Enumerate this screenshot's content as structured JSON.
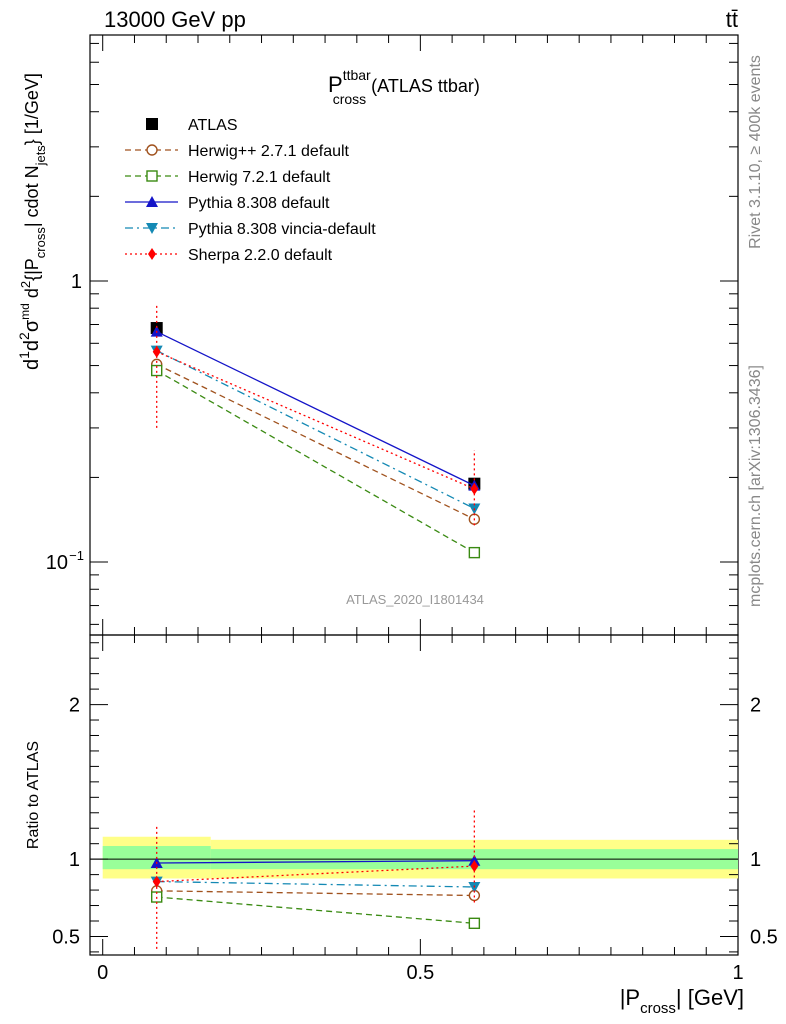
{
  "header": {
    "left": "13000 GeV pp",
    "right": "tt̄"
  },
  "side_labels": {
    "rivet": "Rivet 3.1.10, ≥ 400k events",
    "mcplots": "mcplots.cern.ch [arXiv:1306.3436]"
  },
  "watermark": "ATLAS_2020_I1801434",
  "chart_data": [
    {
      "type": "scatter",
      "panel": "main",
      "title": {
        "main": "P",
        "sup": "ttbar",
        "sub": "cross",
        "suffix": " (ATLAS ttbar)"
      },
      "ylabel": "d¹/σ d²σᵐᵈ / d²{|P_cross| cdot N_jets} [1/GeV]",
      "yscale": "log",
      "xlim": [
        -0.02,
        1.0
      ],
      "ylim": [
        0.055,
        7.5
      ],
      "y_tick_labels": {
        "major_1": "1",
        "major_01": "10",
        "major_01_exp": "−1"
      },
      "legend_position": "top-left",
      "x": [
        0.085,
        0.585
      ],
      "series": [
        {
          "name": "ATLAS",
          "color": "#000000",
          "marker": "square-filled",
          "line": "none",
          "values": [
            0.68,
            0.19
          ],
          "err_low": [
            0.0,
            0.0
          ],
          "err_high": [
            0.0,
            0.0
          ]
        },
        {
          "name": "Herwig++ 2.7.1 default",
          "color": "#a0521e",
          "marker": "circle-open",
          "line": "dashed",
          "values": [
            0.505,
            0.142
          ]
        },
        {
          "name": "Herwig 7.2.1 default",
          "color": "#3a8a12",
          "marker": "square-open",
          "line": "dashed",
          "values": [
            0.48,
            0.108
          ]
        },
        {
          "name": "Pythia 8.308 default",
          "color": "#1414c8",
          "marker": "triangle-up",
          "line": "solid",
          "values": [
            0.66,
            0.187
          ]
        },
        {
          "name": "Pythia 8.308 vincia-default",
          "color": "#1489b4",
          "marker": "triangle-down",
          "line": "dashdot",
          "values": [
            0.565,
            0.155
          ]
        },
        {
          "name": "Sherpa 2.2.0 default",
          "color": "#ff0000",
          "marker": "diamond",
          "line": "dotted",
          "values": [
            0.56,
            0.182
          ],
          "err_low": [
            0.3,
            0.135
          ],
          "err_high": [
            0.83,
            0.25
          ]
        }
      ]
    },
    {
      "type": "scatter",
      "panel": "ratio",
      "ylabel": "Ratio to ATLAS",
      "xlabel": {
        "main": "|P",
        "sub": "cross",
        "suffix": "| [GeV]"
      },
      "xlim": [
        -0.02,
        1.0
      ],
      "ylim": [
        0.38,
        2.45
      ],
      "x_ticks": [
        0,
        0.5,
        1
      ],
      "x_tick_labels": [
        "0",
        "0.5",
        "1"
      ],
      "y_ticks": [
        0.5,
        1,
        2
      ],
      "y_tick_labels": [
        "0.5",
        "1",
        "2"
      ],
      "bands": [
        {
          "xlo": 0.0,
          "xhi": 0.17,
          "yellow": [
            0.875,
            1.145
          ],
          "green": [
            0.935,
            1.085
          ]
        },
        {
          "xlo": 0.17,
          "xhi": 1.0,
          "yellow": [
            0.875,
            1.125
          ],
          "green": [
            0.935,
            1.065
          ]
        }
      ],
      "x": [
        0.085,
        0.585
      ],
      "series": [
        {
          "name": "Herwig++ 2.7.1 default",
          "values": [
            0.795,
            0.765
          ]
        },
        {
          "name": "Herwig 7.2.1 default",
          "values": [
            0.755,
            0.585
          ]
        },
        {
          "name": "Pythia 8.308 default",
          "values": [
            0.975,
            0.99
          ]
        },
        {
          "name": "Pythia 8.308 vincia-default",
          "values": [
            0.855,
            0.82
          ]
        },
        {
          "name": "Sherpa 2.2.0 default",
          "values": [
            0.855,
            0.955
          ],
          "err_low": [
            0.42,
            0.72
          ],
          "err_high": [
            1.22,
            1.32
          ]
        }
      ]
    }
  ]
}
